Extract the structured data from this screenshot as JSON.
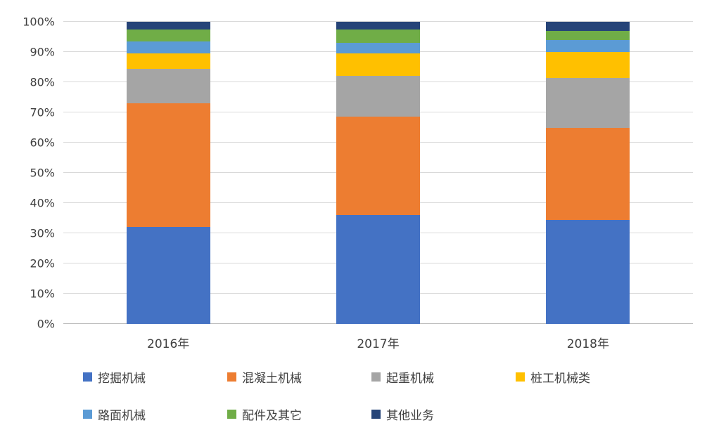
{
  "chart_data": {
    "type": "bar",
    "stacked": true,
    "percent_stacked": true,
    "title": "",
    "xlabel": "",
    "ylabel": "",
    "categories": [
      "2016年",
      "2017年",
      "2018年"
    ],
    "series": [
      {
        "name": "挖掘机械",
        "color": "#4472C4",
        "values": [
          32,
          36,
          34.5
        ]
      },
      {
        "name": "混凝土机械",
        "color": "#ED7D31",
        "values": [
          41,
          32.5,
          30.5
        ]
      },
      {
        "name": "起重机械",
        "color": "#A5A5A5",
        "values": [
          11.5,
          13.5,
          16.5
        ]
      },
      {
        "name": "桩工机械类",
        "color": "#FFC000",
        "values": [
          5,
          7.5,
          8.5
        ]
      },
      {
        "name": "路面机械",
        "color": "#5B9BD5",
        "values": [
          4,
          3.5,
          4
        ]
      },
      {
        "name": "配件及其它",
        "color": "#70AD47",
        "values": [
          4,
          4.5,
          3
        ]
      },
      {
        "name": "其他业务",
        "color": "#264478",
        "values": [
          2.5,
          2.5,
          3
        ]
      }
    ],
    "y_ticks": [
      "0%",
      "10%",
      "20%",
      "30%",
      "40%",
      "50%",
      "60%",
      "70%",
      "80%",
      "90%",
      "100%"
    ],
    "ylim": [
      0,
      100
    ],
    "grid": true,
    "legend_position": "bottom"
  }
}
